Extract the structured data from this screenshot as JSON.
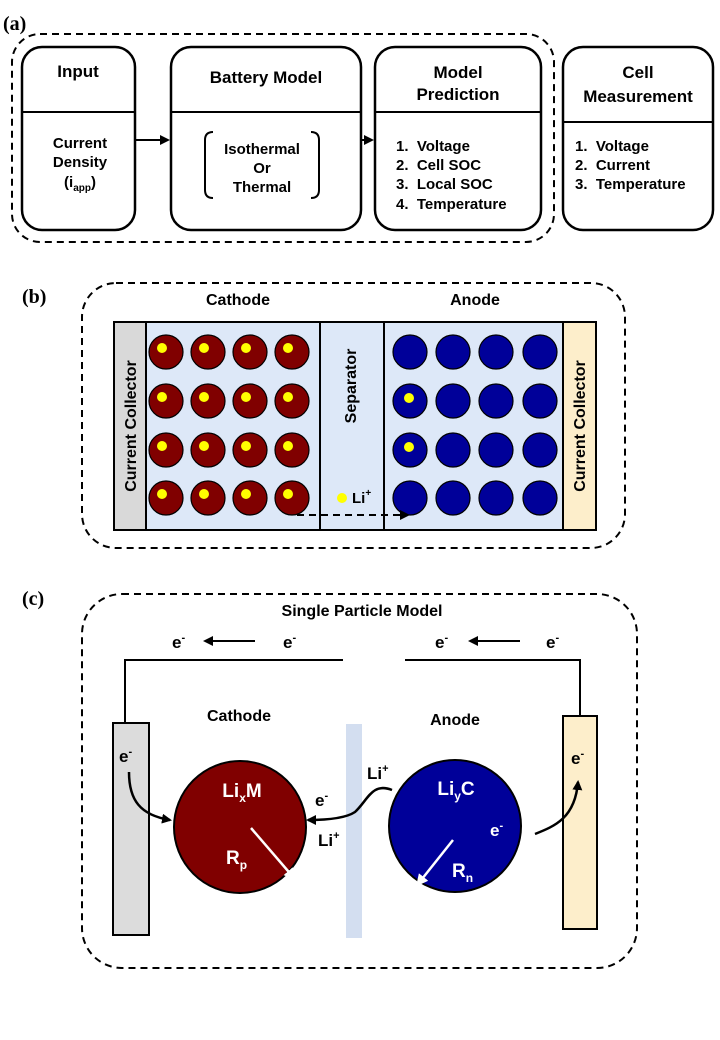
{
  "panel_a": {
    "label": "(a)",
    "input": {
      "title": "Input",
      "body": [
        "Current",
        "Density"
      ],
      "i": "i",
      "app": "app"
    },
    "model": {
      "title": "Battery Model",
      "body": [
        "Isothermal",
        "Or",
        "Thermal"
      ]
    },
    "prediction": {
      "title": [
        "Model",
        "Prediction"
      ],
      "items": [
        "1.  Voltage",
        "2.  Cell SOC",
        "3.  Local SOC",
        "4.  Temperature"
      ]
    },
    "measurement": {
      "title": [
        "Cell",
        "Measurement"
      ],
      "items": [
        "1.  Voltage",
        "2.  Current",
        "3.  Temperature"
      ]
    }
  },
  "panel_b": {
    "label": "(b)",
    "cathode": "Cathode",
    "anode": "Anode",
    "collector_left": "Current Collector",
    "collector_right": "Current Collector",
    "separator": "Separator",
    "li": "Li",
    "plus": "+",
    "grid": {
      "rows": 4,
      "cols": 4,
      "anode_lithiated": [
        [
          1,
          0
        ],
        [
          2,
          0
        ]
      ]
    },
    "colors": {
      "cathode": "#800000",
      "anode": "#000099",
      "li_ion": "#ffff00",
      "electrode_bg": "#dde8f8",
      "collector_left": "#d9d9d9",
      "collector_right": "#fdeecb"
    }
  },
  "panel_c": {
    "label": "(c)",
    "title": "Single Particle Model",
    "cathode": "Cathode",
    "anode": "Anode",
    "e": "e",
    "minus": "-",
    "li": "Li",
    "plus": "+",
    "cathode_particle": {
      "main": "Li",
      "sub": "x",
      "tail": "M",
      "radius": "R",
      "radius_sub": "p"
    },
    "anode_particle": {
      "main": "Li",
      "sub": "y",
      "tail": "C",
      "radius": "R",
      "radius_sub": "n"
    },
    "colors": {
      "cathode": "#800000",
      "anode": "#000099",
      "separator": "#d3def0",
      "collector_left": "#dcdcdc",
      "collector_right": "#fdeecb"
    }
  }
}
